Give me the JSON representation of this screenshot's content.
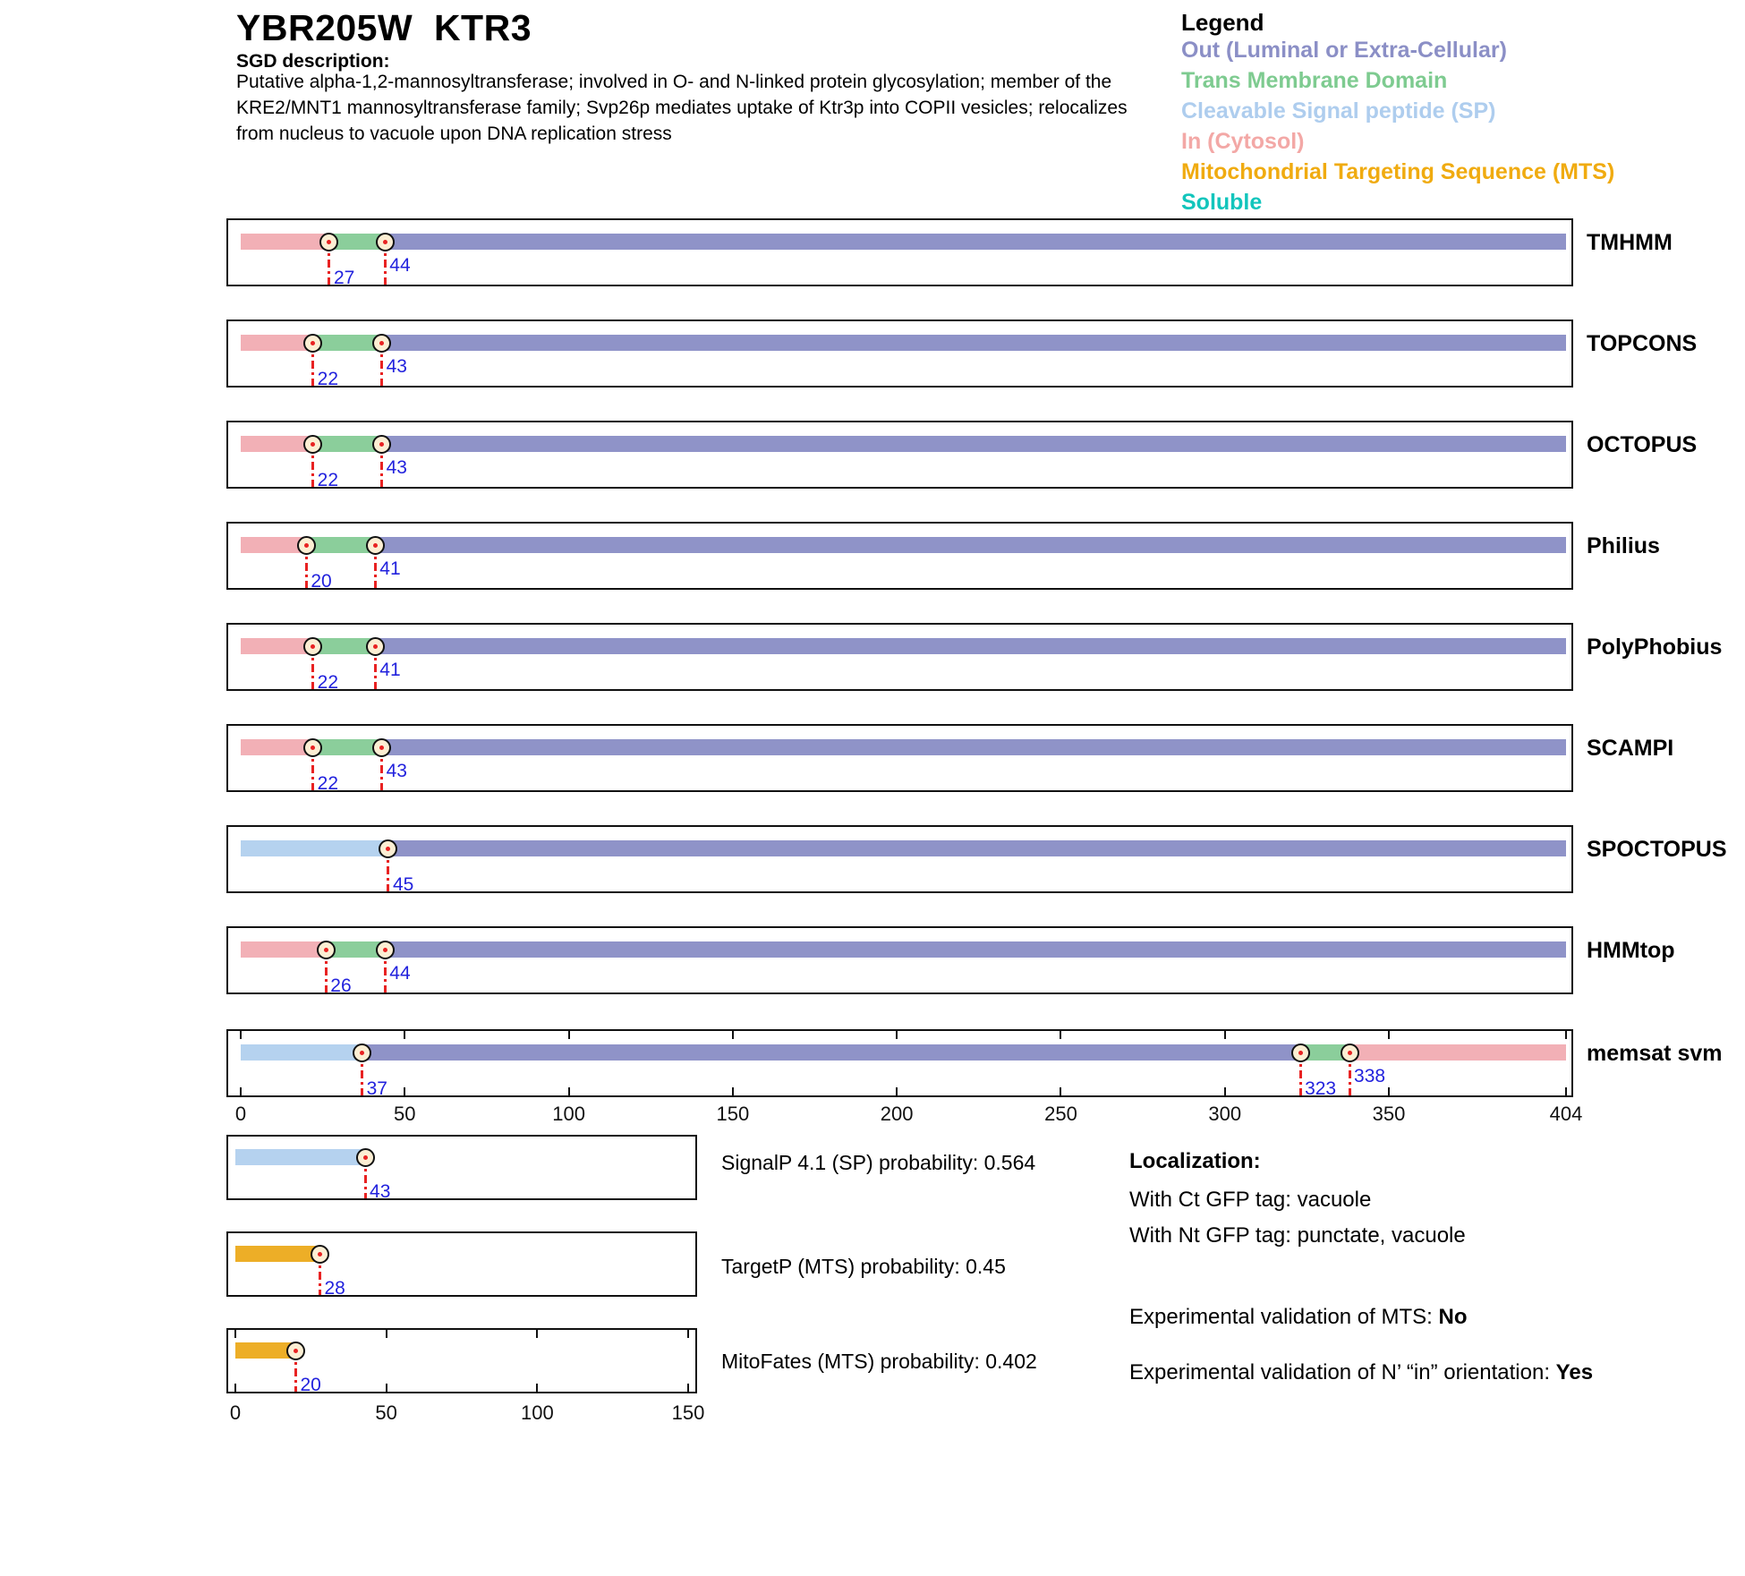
{
  "header": {
    "title": "YBR205W  KTR3",
    "sgd_label": "SGD description:",
    "description_lines": [
      "Putative alpha-1,2-mannosyltransferase; involved in O- and N-linked protein glycosylation; member of the",
      "KRE2/MNT1 mannosyltransferase family; Svp26p mediates uptake of Ktr3p into COPII vesicles; relocalizes",
      "from nucleus to vacuole upon DNA replication stress"
    ]
  },
  "legend": {
    "title": "Legend",
    "items": [
      {
        "id": "out",
        "label": "Out (Luminal or Extra-Cellular)",
        "color": "#8b8fc6"
      },
      {
        "id": "tm",
        "label": "Trans Membrane Domain",
        "color": "#7ecb90"
      },
      {
        "id": "sp",
        "label": "Cleavable Signal peptide (SP)",
        "color": "#aecdee"
      },
      {
        "id": "in",
        "label": "In (Cytosol)",
        "color": "#f3a8a6"
      },
      {
        "id": "mts",
        "label": "Mitochondrial Targeting Sequence (MTS)",
        "color": "#f0ab10"
      },
      {
        "id": "soluble",
        "label": "Soluble",
        "color": "#12c5bc"
      }
    ]
  },
  "chart_data": {
    "type": "topology-tracks",
    "region_colors": {
      "in": "#f2b0b6",
      "tm": "#8bce9b",
      "out": "#8f93c8",
      "sp": "#b5d2ef",
      "mts": "#edae27"
    },
    "axis": {
      "min": 0,
      "max": 404,
      "ticks": [
        0,
        50,
        100,
        150,
        200,
        250,
        300,
        350,
        404
      ]
    },
    "tracks": [
      {
        "name": "TMHMM",
        "ticks": false,
        "segments": [
          {
            "type": "in",
            "start": 0,
            "end": 27
          },
          {
            "type": "tm",
            "start": 27,
            "end": 44
          },
          {
            "type": "out",
            "start": 44,
            "end": 404
          }
        ],
        "markers": [
          {
            "pos": 27,
            "label": "27",
            "level": "low"
          },
          {
            "pos": 44,
            "label": "44",
            "level": "high"
          }
        ]
      },
      {
        "name": "TOPCONS",
        "ticks": false,
        "segments": [
          {
            "type": "in",
            "start": 0,
            "end": 22
          },
          {
            "type": "tm",
            "start": 22,
            "end": 43
          },
          {
            "type": "out",
            "start": 43,
            "end": 404
          }
        ],
        "markers": [
          {
            "pos": 22,
            "label": "22",
            "level": "low"
          },
          {
            "pos": 43,
            "label": "43",
            "level": "high"
          }
        ]
      },
      {
        "name": "OCTOPUS",
        "ticks": false,
        "segments": [
          {
            "type": "in",
            "start": 0,
            "end": 22
          },
          {
            "type": "tm",
            "start": 22,
            "end": 43
          },
          {
            "type": "out",
            "start": 43,
            "end": 404
          }
        ],
        "markers": [
          {
            "pos": 22,
            "label": "22",
            "level": "low"
          },
          {
            "pos": 43,
            "label": "43",
            "level": "high"
          }
        ]
      },
      {
        "name": "Philius",
        "ticks": false,
        "segments": [
          {
            "type": "in",
            "start": 0,
            "end": 20
          },
          {
            "type": "tm",
            "start": 20,
            "end": 41
          },
          {
            "type": "out",
            "start": 41,
            "end": 404
          }
        ],
        "markers": [
          {
            "pos": 20,
            "label": "20",
            "level": "low"
          },
          {
            "pos": 41,
            "label": "41",
            "level": "high"
          }
        ]
      },
      {
        "name": "PolyPhobius",
        "ticks": false,
        "segments": [
          {
            "type": "in",
            "start": 0,
            "end": 22
          },
          {
            "type": "tm",
            "start": 22,
            "end": 41
          },
          {
            "type": "out",
            "start": 41,
            "end": 404
          }
        ],
        "markers": [
          {
            "pos": 22,
            "label": "22",
            "level": "low"
          },
          {
            "pos": 41,
            "label": "41",
            "level": "high"
          }
        ]
      },
      {
        "name": "SCAMPI",
        "ticks": false,
        "segments": [
          {
            "type": "in",
            "start": 0,
            "end": 22
          },
          {
            "type": "tm",
            "start": 22,
            "end": 43
          },
          {
            "type": "out",
            "start": 43,
            "end": 404
          }
        ],
        "markers": [
          {
            "pos": 22,
            "label": "22",
            "level": "low"
          },
          {
            "pos": 43,
            "label": "43",
            "level": "high"
          }
        ]
      },
      {
        "name": "SPOCTOPUS",
        "ticks": false,
        "segments": [
          {
            "type": "sp",
            "start": 0,
            "end": 45
          },
          {
            "type": "out",
            "start": 45,
            "end": 404
          }
        ],
        "markers": [
          {
            "pos": 45,
            "label": "45",
            "level": "low"
          }
        ]
      },
      {
        "name": "HMMtop",
        "ticks": false,
        "segments": [
          {
            "type": "in",
            "start": 0,
            "end": 26
          },
          {
            "type": "tm",
            "start": 26,
            "end": 44
          },
          {
            "type": "out",
            "start": 44,
            "end": 404
          }
        ],
        "markers": [
          {
            "pos": 26,
            "label": "26",
            "level": "low"
          },
          {
            "pos": 44,
            "label": "44",
            "level": "high"
          }
        ]
      },
      {
        "name": "memsat svm",
        "ticks": true,
        "segments": [
          {
            "type": "sp",
            "start": 0,
            "end": 37
          },
          {
            "type": "out",
            "start": 37,
            "end": 323
          },
          {
            "type": "tm",
            "start": 323,
            "end": 338
          },
          {
            "type": "in",
            "start": 338,
            "end": 404
          }
        ],
        "markers": [
          {
            "pos": 37,
            "label": "37",
            "level": "low"
          },
          {
            "pos": 323,
            "label": "323",
            "level": "low"
          },
          {
            "pos": 338,
            "label": "338",
            "level": "high"
          }
        ]
      }
    ],
    "small_axis": {
      "min": 0,
      "max": 150,
      "ticks": [
        0,
        50,
        100,
        150
      ]
    },
    "probability_tracks": [
      {
        "label": "SignalP 4.1 (SP) probability: 0.564",
        "ticks": false,
        "segments": [
          {
            "type": "sp",
            "start": 0,
            "end": 43
          }
        ],
        "markers": [
          {
            "pos": 43,
            "label": "43",
            "level": "low"
          }
        ]
      },
      {
        "label": "TargetP (MTS) probability: 0.45",
        "ticks": false,
        "segments": [
          {
            "type": "mts",
            "start": 0,
            "end": 28
          }
        ],
        "markers": [
          {
            "pos": 28,
            "label": "28",
            "level": "low"
          }
        ]
      },
      {
        "label": "MitoFates (MTS) probability: 0.402",
        "ticks": true,
        "segments": [
          {
            "type": "mts",
            "start": 0,
            "end": 20
          }
        ],
        "markers": [
          {
            "pos": 20,
            "label": "20",
            "level": "low"
          }
        ]
      }
    ]
  },
  "localization": {
    "heading": "Localization:",
    "line_ct": "With Ct GFP tag: vacuole",
    "line_nt": "With Nt GFP tag: punctate, vacuole",
    "mts_prefix": "Experimental validation of MTS: ",
    "mts_value": "No",
    "orient_prefix": "Experimental validation of N’ “in” orientation: ",
    "orient_value": "Yes"
  }
}
